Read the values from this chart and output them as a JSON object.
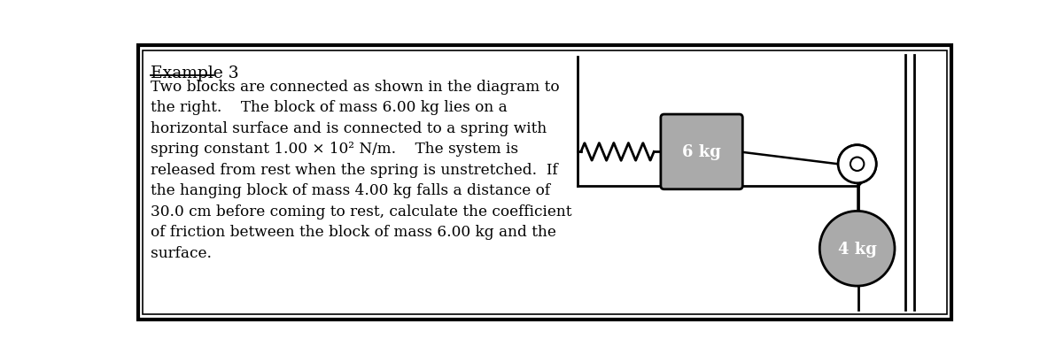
{
  "bg_color": "#ffffff",
  "border_color": "#000000",
  "block6_label": "6 kg",
  "block4_label": "4 kg",
  "block6_color": "#aaaaaa",
  "block4_color": "#aaaaaa",
  "label_color": "#ffffff",
  "text_color": "#000000",
  "outer_border_lw": 3,
  "inner_border_lw": 1.5,
  "title_text": "Example 3",
  "body_lines": [
    "Two blocks are connected as shown in the diagram to",
    "the right.    The block of mass 6.00 kg lies on a",
    "horizontal surface and is connected to a spring with",
    "spring constant 1.00 × 10² N/m.    The system is",
    "released from rest when the spring is unstretched.  If",
    "the hanging block of mass 4.00 kg falls a distance of",
    "30.0 cm before coming to rest, calculate the coefficient",
    "of friction between the block of mass 6.00 kg and the",
    "surface."
  ]
}
